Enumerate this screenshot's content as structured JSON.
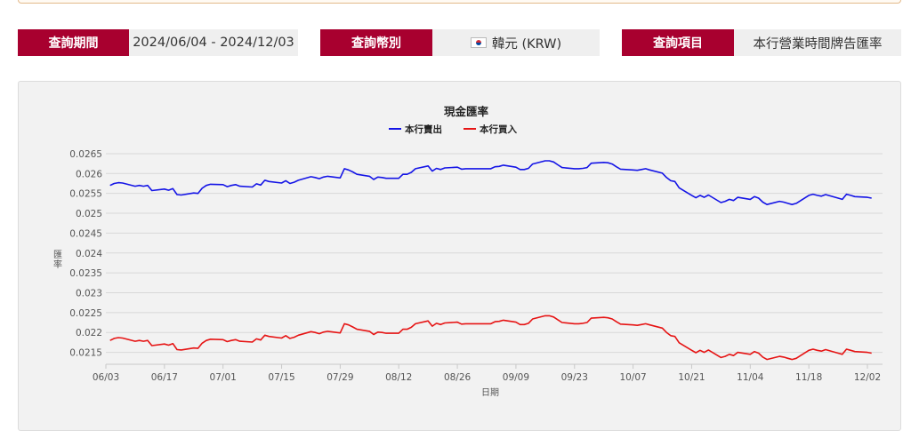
{
  "filters": {
    "period": {
      "label": "查詢期間",
      "value": "2024/06/04 - 2024/12/03"
    },
    "currency": {
      "label": "查詢幣別",
      "value": "韓元 (KRW)",
      "flag_icon": "south-korea-flag-icon"
    },
    "item": {
      "label": "查詢項目",
      "value": "本行營業時間牌告匯率"
    }
  },
  "colors": {
    "label_bg": "#a8002f",
    "value_bg": "#efefef",
    "sell": "#1414e6",
    "buy": "#e61414",
    "panel_bg": "#f2f2f2",
    "grid": "#d6d6d6"
  },
  "chart_data": {
    "type": "line",
    "title": "現金匯率",
    "xlabel": "日期",
    "ylabel": "匯率",
    "ylim": [
      0.0212,
      0.0267
    ],
    "yticks": [
      "0.0265",
      "0.026",
      "0.0255",
      "0.025",
      "0.0245",
      "0.024",
      "0.0235",
      "0.023",
      "0.0225",
      "0.022",
      "0.0215"
    ],
    "xlim": [
      "2024/06/04",
      "2024/12/03"
    ],
    "xticks": [
      "06/03",
      "06/17",
      "07/01",
      "07/15",
      "07/29",
      "08/12",
      "08/26",
      "09/09",
      "09/23",
      "10/07",
      "10/21",
      "11/04",
      "11/18",
      "12/02"
    ],
    "grid": true,
    "legend": "top-center",
    "series": [
      {
        "name": "本行賣出",
        "color": "#1414e6",
        "points": [
          [
            "06/04",
            0.0257
          ],
          [
            "06/05",
            0.02575
          ],
          [
            "06/06",
            0.02577
          ],
          [
            "06/07",
            0.02576
          ],
          [
            "06/10",
            0.02568
          ],
          [
            "06/11",
            0.0257
          ],
          [
            "06/12",
            0.02568
          ],
          [
            "06/13",
            0.0257
          ],
          [
            "06/14",
            0.02557
          ],
          [
            "06/17",
            0.02561
          ],
          [
            "06/18",
            0.02558
          ],
          [
            "06/19",
            0.02562
          ],
          [
            "06/20",
            0.02547
          ],
          [
            "06/21",
            0.02546
          ],
          [
            "06/24",
            0.02551
          ],
          [
            "06/25",
            0.0255
          ],
          [
            "06/26",
            0.02563
          ],
          [
            "06/27",
            0.0257
          ],
          [
            "06/28",
            0.02573
          ],
          [
            "07/01",
            0.02572
          ],
          [
            "07/02",
            0.02567
          ],
          [
            "07/03",
            0.0257
          ],
          [
            "07/04",
            0.02572
          ],
          [
            "07/05",
            0.02568
          ],
          [
            "07/08",
            0.02566
          ],
          [
            "07/09",
            0.02574
          ],
          [
            "07/10",
            0.02571
          ],
          [
            "07/11",
            0.02583
          ],
          [
            "07/12",
            0.0258
          ],
          [
            "07/15",
            0.02576
          ],
          [
            "07/16",
            0.02582
          ],
          [
            "07/17",
            0.02575
          ],
          [
            "07/18",
            0.02578
          ],
          [
            "07/19",
            0.02583
          ],
          [
            "07/22",
            0.02592
          ],
          [
            "07/23",
            0.0259
          ],
          [
            "07/24",
            0.02587
          ],
          [
            "07/25",
            0.02591
          ],
          [
            "07/26",
            0.02593
          ],
          [
            "07/29",
            0.02589
          ],
          [
            "07/30",
            0.02612
          ],
          [
            "07/31",
            0.02609
          ],
          [
            "08/01",
            0.02604
          ],
          [
            "08/02",
            0.02598
          ],
          [
            "08/05",
            0.02593
          ],
          [
            "08/06",
            0.02585
          ],
          [
            "08/07",
            0.02591
          ],
          [
            "08/08",
            0.0259
          ],
          [
            "08/09",
            0.02588
          ],
          [
            "08/12",
            0.02588
          ],
          [
            "08/13",
            0.02598
          ],
          [
            "08/14",
            0.02598
          ],
          [
            "08/15",
            0.02603
          ],
          [
            "08/16",
            0.02612
          ],
          [
            "08/19",
            0.02619
          ],
          [
            "08/20",
            0.02606
          ],
          [
            "08/21",
            0.02613
          ],
          [
            "08/22",
            0.0261
          ],
          [
            "08/23",
            0.02614
          ],
          [
            "08/26",
            0.02616
          ],
          [
            "08/27",
            0.02611
          ],
          [
            "08/28",
            0.02612
          ],
          [
            "08/29",
            0.02612
          ],
          [
            "08/30",
            0.02612
          ],
          [
            "09/02",
            0.02612
          ],
          [
            "09/03",
            0.02612
          ],
          [
            "09/04",
            0.02617
          ],
          [
            "09/05",
            0.02618
          ],
          [
            "09/06",
            0.02621
          ],
          [
            "09/09",
            0.02616
          ],
          [
            "09/10",
            0.0261
          ],
          [
            "09/11",
            0.0261
          ],
          [
            "09/12",
            0.02613
          ],
          [
            "09/13",
            0.02624
          ],
          [
            "09/16",
            0.02632
          ],
          [
            "09/17",
            0.02632
          ],
          [
            "09/18",
            0.02629
          ],
          [
            "09/19",
            0.02622
          ],
          [
            "09/20",
            0.02615
          ],
          [
            "09/23",
            0.02612
          ],
          [
            "09/24",
            0.02612
          ],
          [
            "09/25",
            0.02613
          ],
          [
            "09/26",
            0.02615
          ],
          [
            "09/27",
            0.02626
          ],
          [
            "09/30",
            0.02628
          ],
          [
            "10/01",
            0.02627
          ],
          [
            "10/02",
            0.02624
          ],
          [
            "10/03",
            0.02617
          ],
          [
            "10/04",
            0.02611
          ],
          [
            "10/07",
            0.02609
          ],
          [
            "10/08",
            0.02608
          ],
          [
            "10/09",
            0.0261
          ],
          [
            "10/10",
            0.02612
          ],
          [
            "10/11",
            0.02609
          ],
          [
            "10/14",
            0.02601
          ],
          [
            "10/15",
            0.0259
          ],
          [
            "10/16",
            0.02582
          ],
          [
            "10/17",
            0.0258
          ],
          [
            "10/18",
            0.02564
          ],
          [
            "10/21",
            0.02545
          ],
          [
            "10/22",
            0.02539
          ],
          [
            "10/23",
            0.02545
          ],
          [
            "10/24",
            0.0254
          ],
          [
            "10/25",
            0.02546
          ],
          [
            "10/28",
            0.02527
          ],
          [
            "10/29",
            0.0253
          ],
          [
            "10/30",
            0.02535
          ],
          [
            "10/31",
            0.02532
          ],
          [
            "11/01",
            0.0254
          ],
          [
            "11/04",
            0.02535
          ],
          [
            "11/05",
            0.02542
          ],
          [
            "11/06",
            0.02538
          ],
          [
            "11/07",
            0.02528
          ],
          [
            "11/08",
            0.02522
          ],
          [
            "11/11",
            0.0253
          ],
          [
            "11/12",
            0.02528
          ],
          [
            "11/13",
            0.02525
          ],
          [
            "11/14",
            0.02522
          ],
          [
            "11/15",
            0.02525
          ],
          [
            "11/18",
            0.02545
          ],
          [
            "11/19",
            0.02548
          ],
          [
            "11/20",
            0.02545
          ],
          [
            "11/21",
            0.02543
          ],
          [
            "11/22",
            0.02547
          ],
          [
            "11/25",
            0.02538
          ],
          [
            "11/26",
            0.02535
          ],
          [
            "11/27",
            0.02548
          ],
          [
            "11/28",
            0.02545
          ],
          [
            "11/29",
            0.02542
          ],
          [
            "12/02",
            0.0254
          ],
          [
            "12/03",
            0.02538
          ]
        ]
      },
      {
        "name": "本行買入",
        "color": "#e61414",
        "points": [
          [
            "06/04",
            0.0218
          ],
          [
            "06/05",
            0.02185
          ],
          [
            "06/06",
            0.02187
          ],
          [
            "06/07",
            0.02186
          ],
          [
            "06/10",
            0.02178
          ],
          [
            "06/11",
            0.0218
          ],
          [
            "06/12",
            0.02178
          ],
          [
            "06/13",
            0.0218
          ],
          [
            "06/14",
            0.02167
          ],
          [
            "06/17",
            0.02171
          ],
          [
            "06/18",
            0.02168
          ],
          [
            "06/19",
            0.02172
          ],
          [
            "06/20",
            0.02157
          ],
          [
            "06/21",
            0.02156
          ],
          [
            "06/24",
            0.02161
          ],
          [
            "06/25",
            0.0216
          ],
          [
            "06/26",
            0.02173
          ],
          [
            "06/27",
            0.0218
          ],
          [
            "06/28",
            0.02183
          ],
          [
            "07/01",
            0.02182
          ],
          [
            "07/02",
            0.02177
          ],
          [
            "07/03",
            0.0218
          ],
          [
            "07/04",
            0.02182
          ],
          [
            "07/05",
            0.02178
          ],
          [
            "07/08",
            0.02176
          ],
          [
            "07/09",
            0.02184
          ],
          [
            "07/10",
            0.02181
          ],
          [
            "07/11",
            0.02193
          ],
          [
            "07/12",
            0.0219
          ],
          [
            "07/15",
            0.02186
          ],
          [
            "07/16",
            0.02192
          ],
          [
            "07/17",
            0.02185
          ],
          [
            "07/18",
            0.02188
          ],
          [
            "07/19",
            0.02193
          ],
          [
            "07/22",
            0.02202
          ],
          [
            "07/23",
            0.022
          ],
          [
            "07/24",
            0.02197
          ],
          [
            "07/25",
            0.02201
          ],
          [
            "07/26",
            0.02203
          ],
          [
            "07/29",
            0.02199
          ],
          [
            "07/30",
            0.02222
          ],
          [
            "07/31",
            0.02219
          ],
          [
            "08/01",
            0.02214
          ],
          [
            "08/02",
            0.02208
          ],
          [
            "08/05",
            0.02203
          ],
          [
            "08/06",
            0.02195
          ],
          [
            "08/07",
            0.02201
          ],
          [
            "08/08",
            0.022
          ],
          [
            "08/09",
            0.02198
          ],
          [
            "08/12",
            0.02198
          ],
          [
            "08/13",
            0.02208
          ],
          [
            "08/14",
            0.02208
          ],
          [
            "08/15",
            0.02213
          ],
          [
            "08/16",
            0.02222
          ],
          [
            "08/19",
            0.02229
          ],
          [
            "08/20",
            0.02216
          ],
          [
            "08/21",
            0.02223
          ],
          [
            "08/22",
            0.0222
          ],
          [
            "08/23",
            0.02224
          ],
          [
            "08/26",
            0.02226
          ],
          [
            "08/27",
            0.02221
          ],
          [
            "08/28",
            0.02222
          ],
          [
            "08/29",
            0.02222
          ],
          [
            "08/30",
            0.02222
          ],
          [
            "09/02",
            0.02222
          ],
          [
            "09/03",
            0.02222
          ],
          [
            "09/04",
            0.02227
          ],
          [
            "09/05",
            0.02228
          ],
          [
            "09/06",
            0.02231
          ],
          [
            "09/09",
            0.02226
          ],
          [
            "09/10",
            0.0222
          ],
          [
            "09/11",
            0.0222
          ],
          [
            "09/12",
            0.02223
          ],
          [
            "09/13",
            0.02234
          ],
          [
            "09/16",
            0.02242
          ],
          [
            "09/17",
            0.02242
          ],
          [
            "09/18",
            0.02239
          ],
          [
            "09/19",
            0.02232
          ],
          [
            "09/20",
            0.02225
          ],
          [
            "09/23",
            0.02222
          ],
          [
            "09/24",
            0.02222
          ],
          [
            "09/25",
            0.02223
          ],
          [
            "09/26",
            0.02225
          ],
          [
            "09/27",
            0.02236
          ],
          [
            "09/30",
            0.02238
          ],
          [
            "10/01",
            0.02237
          ],
          [
            "10/02",
            0.02234
          ],
          [
            "10/03",
            0.02227
          ],
          [
            "10/04",
            0.02221
          ],
          [
            "10/07",
            0.02219
          ],
          [
            "10/08",
            0.02218
          ],
          [
            "10/09",
            0.0222
          ],
          [
            "10/10",
            0.02222
          ],
          [
            "10/11",
            0.02219
          ],
          [
            "10/14",
            0.02211
          ],
          [
            "10/15",
            0.022
          ],
          [
            "10/16",
            0.02192
          ],
          [
            "10/17",
            0.0219
          ],
          [
            "10/18",
            0.02174
          ],
          [
            "10/21",
            0.02155
          ],
          [
            "10/22",
            0.02149
          ],
          [
            "10/23",
            0.02155
          ],
          [
            "10/24",
            0.0215
          ],
          [
            "10/25",
            0.02156
          ],
          [
            "10/28",
            0.02137
          ],
          [
            "10/29",
            0.0214
          ],
          [
            "10/30",
            0.02145
          ],
          [
            "10/31",
            0.02142
          ],
          [
            "11/01",
            0.0215
          ],
          [
            "11/04",
            0.02145
          ],
          [
            "11/05",
            0.02152
          ],
          [
            "11/06",
            0.02148
          ],
          [
            "11/07",
            0.02138
          ],
          [
            "11/08",
            0.02132
          ],
          [
            "11/11",
            0.0214
          ],
          [
            "11/12",
            0.02138
          ],
          [
            "11/13",
            0.02135
          ],
          [
            "11/14",
            0.02132
          ],
          [
            "11/15",
            0.02135
          ],
          [
            "11/18",
            0.02155
          ],
          [
            "11/19",
            0.02158
          ],
          [
            "11/20",
            0.02155
          ],
          [
            "11/21",
            0.02153
          ],
          [
            "11/22",
            0.02157
          ],
          [
            "11/25",
            0.02148
          ],
          [
            "11/26",
            0.02145
          ],
          [
            "11/27",
            0.02158
          ],
          [
            "11/28",
            0.02155
          ],
          [
            "11/29",
            0.02152
          ],
          [
            "12/02",
            0.0215
          ],
          [
            "12/03",
            0.02148
          ]
        ]
      }
    ]
  }
}
